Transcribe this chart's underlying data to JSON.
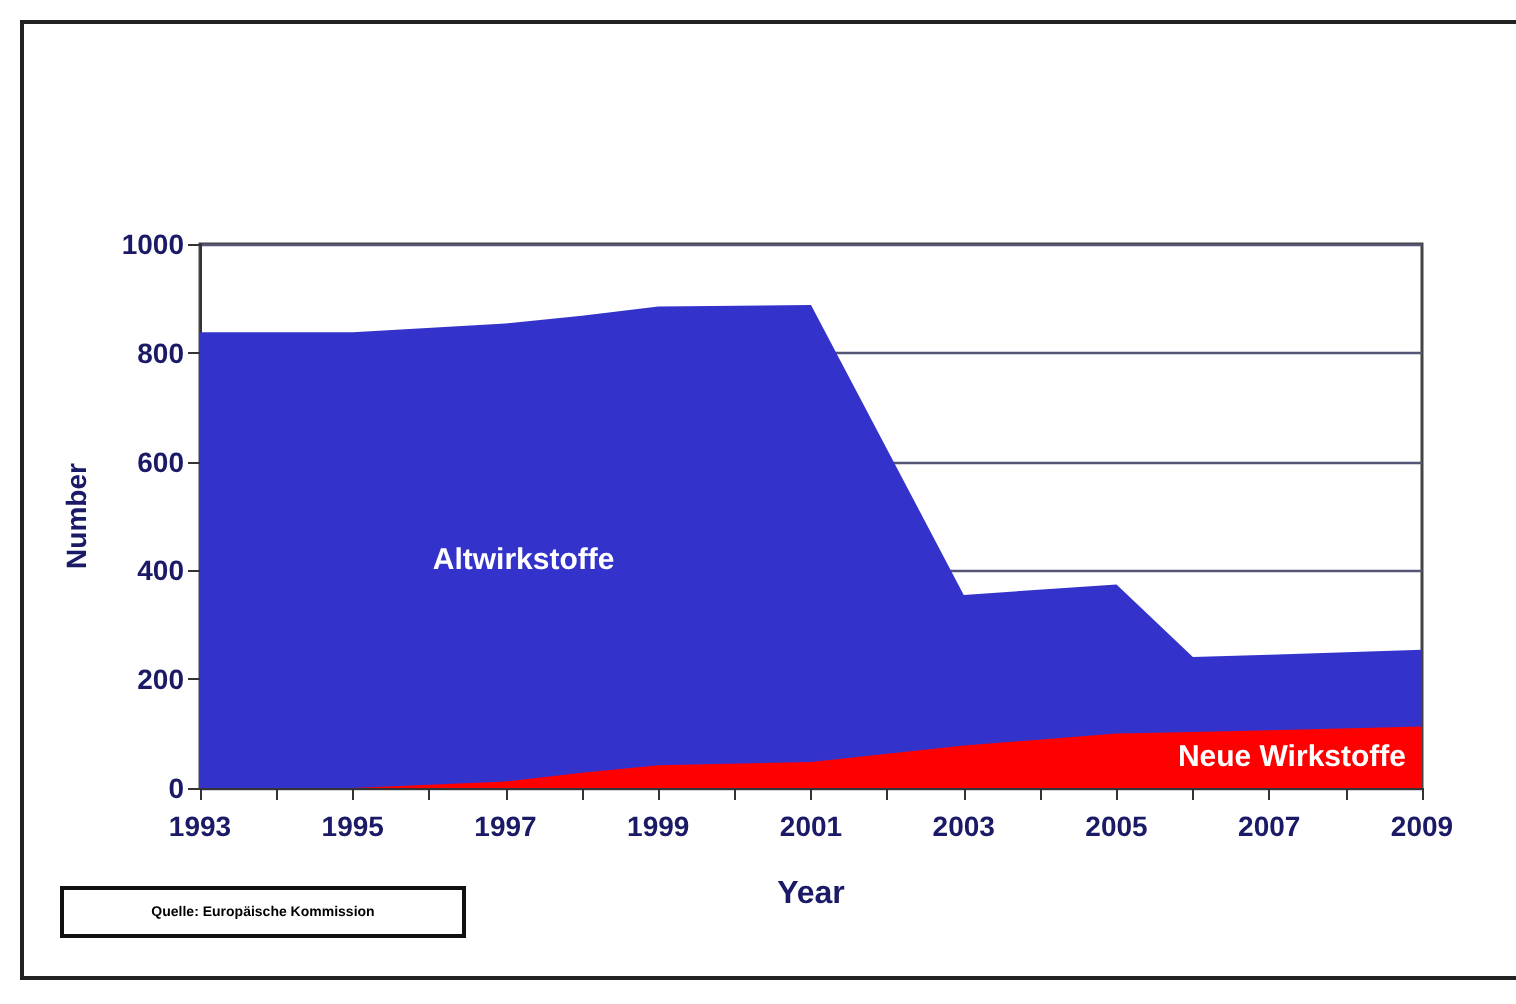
{
  "chart_data": {
    "type": "area",
    "stacked": true,
    "xlabel": "Year",
    "ylabel": "Number",
    "x": [
      1993,
      1995,
      1997,
      1998,
      1999,
      2001,
      2003,
      2005,
      2006,
      2007,
      2009
    ],
    "series": [
      {
        "name": "Neue Wirkstoffe",
        "color": "#ff0000",
        "values": [
          0,
          0,
          12,
          28,
          42,
          48,
          78,
          100,
          103,
          106,
          113
        ]
      },
      {
        "name": "Altwirkstoffe",
        "color": "#3333cc",
        "values": [
          838,
          838,
          842,
          840,
          843,
          840,
          277,
          274,
          138,
          139,
          141
        ]
      }
    ],
    "xlim": [
      1993,
      2009
    ],
    "xticks": [
      1993,
      {
        "value": 1994,
        "label": null
      },
      1995,
      {
        "value": 1996,
        "label": null
      },
      1997,
      {
        "value": 1998,
        "label": null
      },
      1999,
      {
        "value": 2000,
        "label": null
      },
      2001,
      {
        "value": 2002,
        "label": null
      },
      2003,
      {
        "value": 2004,
        "label": null
      },
      2005,
      {
        "value": 2006,
        "label": null
      },
      2007,
      {
        "value": 2008,
        "label": null
      },
      2009
    ],
    "ylim": [
      0,
      1000
    ],
    "yticks": [
      0,
      200,
      400,
      600,
      800,
      1000
    ],
    "grid": "y",
    "legend": false,
    "annotations": [
      "Quelle: Europäische Kommission"
    ]
  }
}
